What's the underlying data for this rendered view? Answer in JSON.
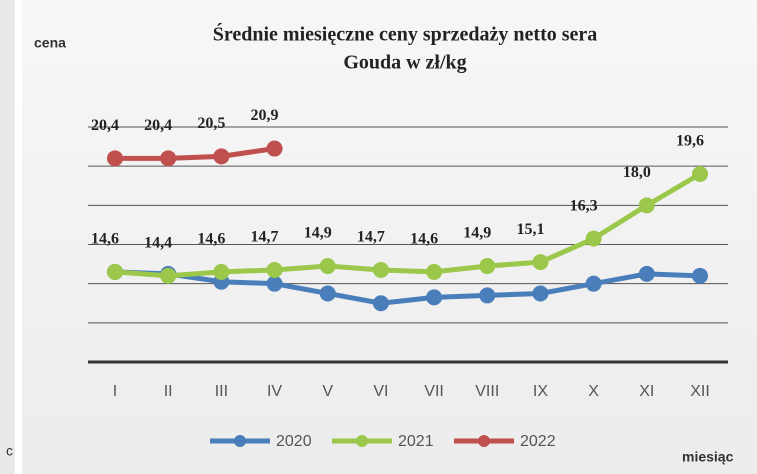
{
  "side_fragment": "c",
  "chart_data": {
    "type": "line",
    "title": [
      "Średnie miesięczne ceny sprzedaży netto sera",
      "Gouda w zł/kg"
    ],
    "y_label": "cena",
    "x_label": "miesiąc",
    "categories": [
      "I",
      "II",
      "III",
      "IV",
      "V",
      "VI",
      "VII",
      "VIII",
      "IX",
      "X",
      "XI",
      "XII"
    ],
    "ylim": [
      10,
      22
    ],
    "yticks": [
      10,
      12,
      14,
      16,
      18,
      20,
      22
    ],
    "grid": true,
    "legend": "bottom",
    "series": [
      {
        "name": "2020",
        "color": "#4a7ebb",
        "values": [
          14.6,
          14.5,
          14.1,
          14.0,
          13.5,
          13.0,
          13.3,
          13.4,
          13.5,
          14.0,
          14.5,
          14.4
        ]
      },
      {
        "name": "2021",
        "color": "#9bc84a",
        "values": [
          14.6,
          14.4,
          14.6,
          14.7,
          14.9,
          14.7,
          14.6,
          14.9,
          15.1,
          16.3,
          18.0,
          19.6
        ],
        "value_labels": [
          "14,6",
          "14,4",
          "14,6",
          "14,7",
          "14,9",
          "14,7",
          "14,6",
          "14,9",
          "15,1",
          "16,3",
          "18,0",
          "19,6"
        ]
      },
      {
        "name": "2022",
        "color": "#c0504d",
        "values": [
          20.4,
          20.4,
          20.5,
          20.9,
          null,
          null,
          null,
          null,
          null,
          null,
          null,
          null
        ],
        "value_labels": [
          "20,4",
          "20,4",
          "20,5",
          "20,9",
          null,
          null,
          null,
          null,
          null,
          null,
          null,
          null
        ]
      }
    ]
  }
}
